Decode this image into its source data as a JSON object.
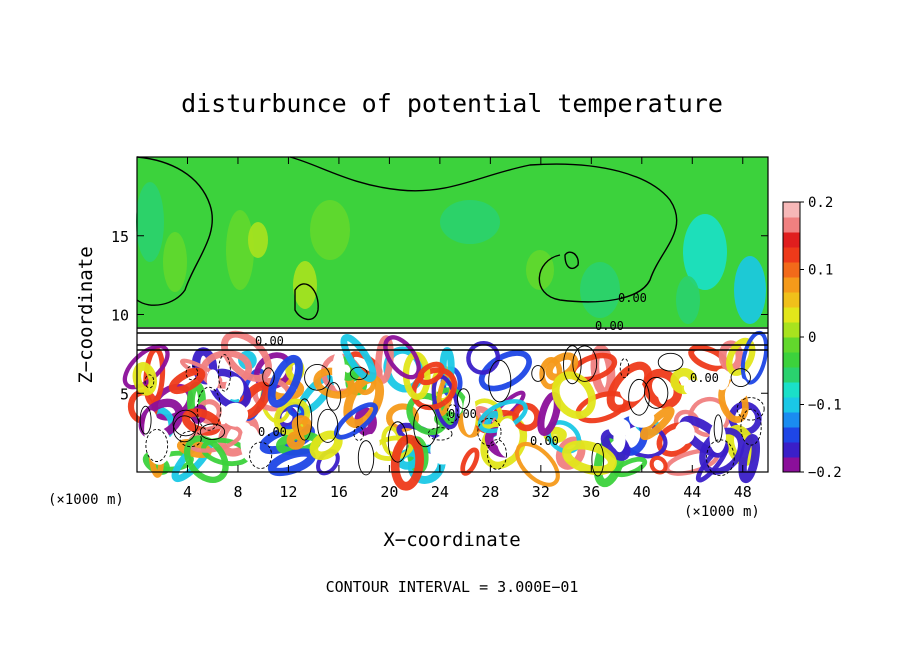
{
  "chart_data": {
    "type": "heatmap",
    "title": "disturbunce of potential temperature",
    "xlabel": "X−coordinate",
    "ylabel": "Z−coordinate",
    "x_unit_left": "(×1000 m)",
    "x_unit_right": "(×1000 m)",
    "xlim": [
      0,
      50
    ],
    "ylim": [
      0,
      20
    ],
    "x_ticks": [
      4,
      8,
      12,
      16,
      20,
      24,
      28,
      32,
      36,
      40,
      44,
      48
    ],
    "x_tick_labels": [
      "4",
      "8",
      "12",
      "16",
      "20",
      "24",
      "28",
      "32",
      "36",
      "40",
      "44",
      "48"
    ],
    "y_ticks": [
      5,
      10,
      15
    ],
    "y_tick_labels": [
      "5",
      "10",
      "15"
    ],
    "colorbar": {
      "range": [
        -0.2,
        0.2
      ],
      "ticks": [
        0.2,
        0.1,
        0,
        -0.1,
        -0.2
      ],
      "tick_labels": [
        "0.2",
        "0.1",
        "0",
        "−0.1",
        "−0.2"
      ],
      "colors": [
        "#8b0f9a",
        "#3a1fc8",
        "#1e46e6",
        "#1a8cf0",
        "#1ac8e6",
        "#1ae0c8",
        "#2ad26e",
        "#3cd23c",
        "#62d82c",
        "#a8e21e",
        "#e2e61a",
        "#f0c01a",
        "#f59a1a",
        "#f26a1a",
        "#ee3a1a",
        "#e01e1e",
        "#f08080",
        "#f7b8b8"
      ]
    },
    "contour_labels": [
      "0.00",
      "0.00",
      "0.00",
      "0.00",
      "0.00",
      "0.00",
      "0.00"
    ],
    "footer": "CONTOUR INTERVAL = 3.000E−01",
    "grid": false
  }
}
